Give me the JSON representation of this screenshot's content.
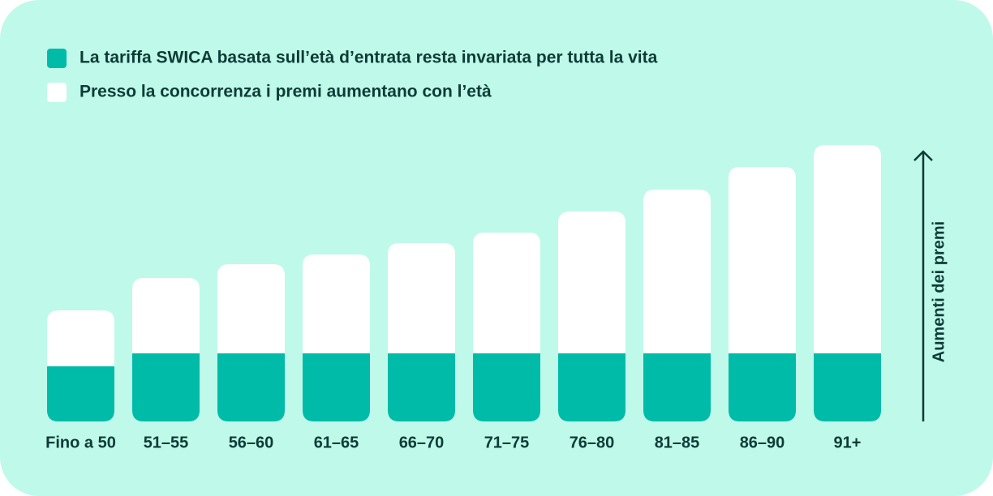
{
  "chart_data": {
    "type": "stacked_bar",
    "categories": [
      "Fino a 50",
      "51–55",
      "56–60",
      "61–65",
      "66–70",
      "71–75",
      "76–80",
      "81–85",
      "86–90",
      "91+"
    ],
    "series": [
      {
        "name": "La tariffa SWICA basata sull’età d’entrata resta invariata per tutta la vita",
        "color": "#00bba8",
        "values": [
          68,
          84,
          84,
          84,
          84,
          84,
          84,
          84,
          84,
          84
        ]
      },
      {
        "name": "Presso la concorrenza i premi aumentano con l’età",
        "color": "#ffffff",
        "values": [
          69,
          93,
          110,
          122,
          136,
          149,
          175,
          202,
          230,
          257
        ]
      }
    ],
    "y_label": "Aumenti dei premi"
  }
}
